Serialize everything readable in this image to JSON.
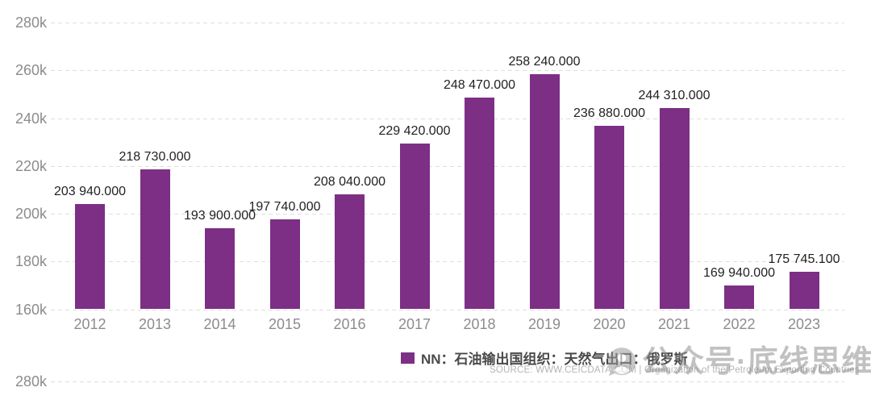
{
  "chart_data": {
    "type": "bar",
    "title": "",
    "xlabel": "",
    "ylabel": "",
    "categories": [
      "2012",
      "2013",
      "2014",
      "2015",
      "2016",
      "2017",
      "2018",
      "2019",
      "2020",
      "2021",
      "2022",
      "2023"
    ],
    "values": [
      203940,
      218730,
      193900,
      197740,
      208040,
      229420,
      248470,
      258240,
      236880,
      244310,
      169940,
      175745.1
    ],
    "value_labels": [
      "203 940.000",
      "218 730.000",
      "193 900.000",
      "197 740.000",
      "208 040.000",
      "229 420.000",
      "248 470.000",
      "258 240.000",
      "236 880.000",
      "244 310.000",
      "169 940.000",
      "175 745.100"
    ],
    "ylim": [
      160000,
      280000
    ],
    "yticks": [
      {
        "value": 280000,
        "label": "280k"
      },
      {
        "value": 260000,
        "label": "260k"
      },
      {
        "value": 240000,
        "label": "240k"
      },
      {
        "value": 220000,
        "label": "220k"
      },
      {
        "value": 200000,
        "label": "200k"
      },
      {
        "value": 180000,
        "label": "180k"
      },
      {
        "value": 160000,
        "label": "160k"
      }
    ],
    "grid": "dashed-horizontal",
    "bar_color": "#7C2F85",
    "legend": {
      "position": "bottom",
      "swatch_color": "#7C2F85",
      "label": "NN：石油输出国组织：天然气出口：俄罗斯"
    }
  },
  "footer": {
    "source_line": "SOURCE: WWW.CEICDATA.COM | Organization of the Petroleum Exporting Countries"
  },
  "watermark": {
    "icon": "wechat-official-account-icon",
    "text": "公众号·底线思维"
  },
  "next_chart_fragment": {
    "ytick_label": "280k"
  },
  "colors": {
    "bar": "#7C2F85",
    "value_label": "#222222",
    "axis_label": "#8c8c8c",
    "gridline": "#dedede",
    "legend_text": "#4a4a4a",
    "source_text": "#b5b5b5",
    "watermark": "#8f8f8f"
  }
}
